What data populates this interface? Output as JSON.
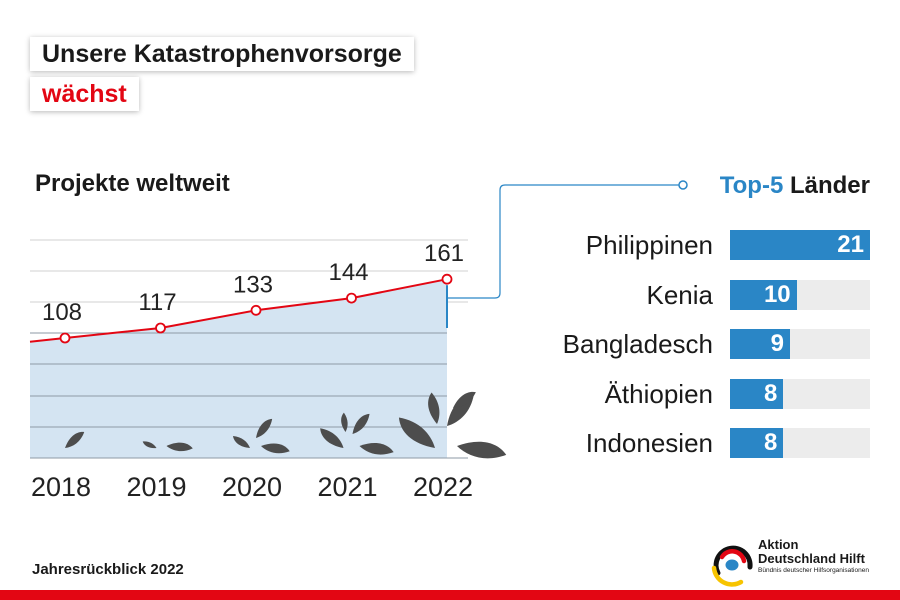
{
  "header": {
    "title_line1": "Unsere Katastrophenvorsorge",
    "title_line2": "wächst",
    "accent_color": "#e30613"
  },
  "chart_data": [
    {
      "type": "area",
      "title": "Projekte weltweit",
      "x": [
        "2018",
        "2019",
        "2020",
        "2021",
        "2022"
      ],
      "values": [
        108,
        117,
        133,
        144,
        161
      ],
      "ylim": [
        0,
        180
      ],
      "grid": true,
      "colors": {
        "line": "#e30613",
        "fill": "#d4e4f2",
        "grid": "#d0d0d0"
      }
    },
    {
      "type": "bar",
      "title_accent": "Top-5",
      "title_rest": " Länder",
      "categories": [
        "Philippinen",
        "Kenia",
        "Bangladesch",
        "Äthiopien",
        "Indonesien"
      ],
      "values": [
        21,
        10,
        9,
        8,
        8
      ],
      "xlim": [
        0,
        21
      ],
      "colors": {
        "bar": "#2a86c6",
        "track": "#ececec"
      }
    }
  ],
  "icons": {
    "growth": "plant-icon",
    "connector": "connector-icon"
  },
  "footer": {
    "text": "Jahresrückblick 2022"
  },
  "logo": {
    "line1": "Aktion",
    "line2": "Deutschland Hilft",
    "line3": "Bündnis deutscher Hilfsorganisationen"
  }
}
